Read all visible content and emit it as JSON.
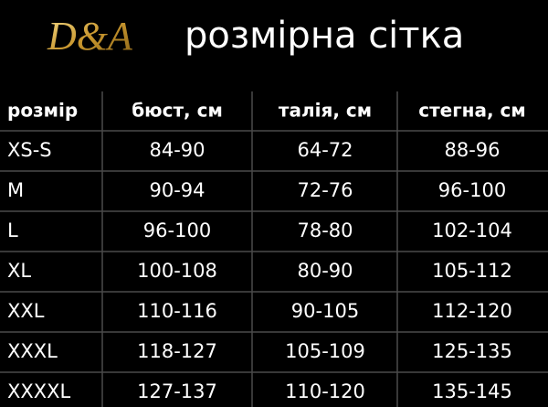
{
  "header": {
    "logo": "D&A",
    "title": "розмірна сітка"
  },
  "table": {
    "columns": [
      "розмір",
      "бюст, см",
      "талія, см",
      "стегна, см"
    ],
    "rows": [
      [
        "XS-S",
        "84-90",
        "64-72",
        "88-96"
      ],
      [
        "M",
        "90-94",
        "72-76",
        "96-100"
      ],
      [
        "L",
        "96-100",
        "78-80",
        "102-104"
      ],
      [
        "XL",
        "100-108",
        "80-90",
        "105-112"
      ],
      [
        "XXL",
        "110-116",
        "90-105",
        "112-120"
      ],
      [
        "XXXL",
        "118-127",
        "105-109",
        "125-135"
      ],
      [
        "XXXXL",
        "127-137",
        "110-120",
        "135-145"
      ]
    ]
  }
}
